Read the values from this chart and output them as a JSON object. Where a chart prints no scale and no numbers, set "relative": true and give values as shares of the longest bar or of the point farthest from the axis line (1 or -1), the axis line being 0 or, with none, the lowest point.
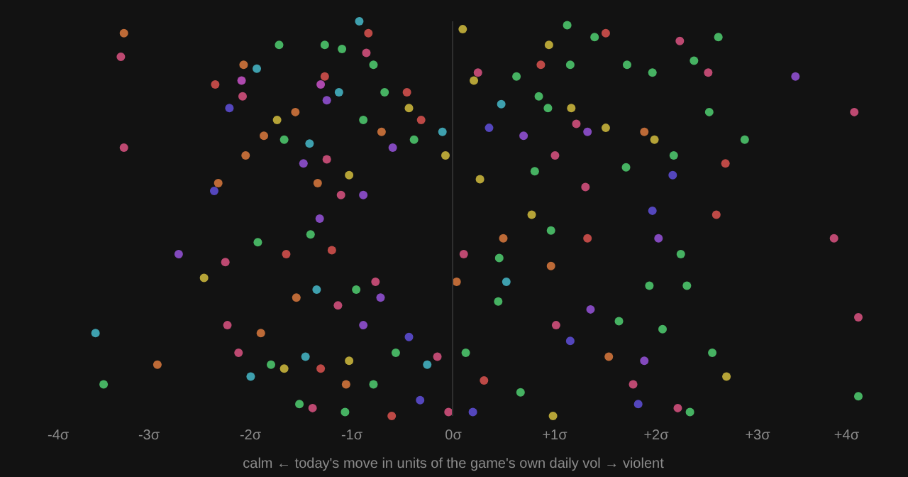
{
  "chart_data": {
    "type": "scatter",
    "xlabel": "calm ← today's move in units of the game's own daily vol → violent",
    "relative": true,
    "marker": "circle",
    "xlim": [
      -4,
      4
    ],
    "xticks": [
      {
        "value": -4,
        "label": "-4σ"
      },
      {
        "value": -3,
        "label": "-3σ"
      },
      {
        "value": -2,
        "label": "-2σ"
      },
      {
        "value": -1,
        "label": "-1σ"
      },
      {
        "value": 0,
        "label": "0σ"
      },
      {
        "value": 1,
        "label": "+1σ"
      },
      {
        "value": 2,
        "label": "+2σ"
      },
      {
        "value": 3,
        "label": "+3σ"
      },
      {
        "value": 4,
        "label": "+4σ"
      }
    ],
    "ref_lines": [
      {
        "axis": "x",
        "value": 0,
        "color": "#2e2e2e"
      }
    ],
    "x": [
      -3.24,
      -3.27,
      -3.24,
      -2.34,
      -2.08,
      -2.07,
      -2.2,
      -2.31,
      -2.35,
      -2.04,
      -1.86,
      -2.06,
      -1.93,
      -1.71,
      -1.26,
      -1.09,
      -1.24,
      -1.55,
      -1.73,
      -1.66,
      -1.41,
      -1.47,
      -1.24,
      -1.02,
      -1.33,
      -1.1,
      -0.88,
      -1.31,
      -0.92,
      -0.83,
      -1.26,
      -0.85,
      -0.78,
      -1.3,
      -1.12,
      -0.67,
      -0.45,
      -0.43,
      -0.88,
      -0.7,
      -0.59,
      -0.31,
      -0.1,
      -0.38,
      -0.07,
      0.1,
      1.13,
      1.4,
      1.51,
      0.95,
      0.87,
      1.16,
      1.72,
      1.97,
      2.24,
      2.62,
      2.38,
      2.52,
      3.38,
      3.96,
      2.53,
      0.63,
      0.85,
      0.94,
      1.33,
      1.17,
      1.22,
      0.48,
      0.25,
      0.21,
      0.36,
      0.7,
      1.51,
      1.89,
      1.99,
      2.18,
      2.88,
      1.01,
      1.71,
      2.17,
      2.69,
      0.81,
      0.27,
      1.31,
      1.97,
      2.6,
      0.78,
      -2.7,
      -2.24,
      -2.45,
      -3.52,
      -2.22,
      -1.89,
      -2.11,
      -2.91,
      -3.44,
      -1.99,
      -1.79,
      -1.66,
      -1.38,
      -1.51,
      -1.92,
      -1.64,
      -1.4,
      -1.19,
      -0.95,
      -0.76,
      -0.71,
      -1.34,
      -1.54,
      -1.13,
      -0.88,
      -0.43,
      -1.45,
      -1.02,
      -0.56,
      -0.25,
      -0.15,
      -1.3,
      -1.05,
      -0.78,
      -0.32,
      -0.6,
      -0.04,
      -1.06,
      0.97,
      2.03,
      3.76,
      0.5,
      1.33,
      2.25,
      1.94,
      2.31,
      0.53,
      0.97,
      1.36,
      1.64,
      1.02,
      2.07,
      4.0,
      1.16,
      2.56,
      1.54,
      1.89,
      2.7,
      0.31,
      1.78,
      4.0,
      1.83,
      2.22,
      2.34,
      0.99,
      0.2,
      0.67,
      0.13,
      0.45,
      0.11,
      0.04,
      0.46
    ],
    "values": [
      0.97,
      0.91,
      0.68,
      0.84,
      0.85,
      0.81,
      0.78,
      0.59,
      0.57,
      0.66,
      0.71,
      0.89,
      0.88,
      0.94,
      0.94,
      0.93,
      0.8,
      0.77,
      0.75,
      0.7,
      0.69,
      0.64,
      0.65,
      0.61,
      0.59,
      0.56,
      0.56,
      0.5,
      1.0,
      0.97,
      0.86,
      0.92,
      0.89,
      0.84,
      0.82,
      0.82,
      0.82,
      0.78,
      0.75,
      0.72,
      0.68,
      0.75,
      0.72,
      0.7,
      0.66,
      0.98,
      0.99,
      0.96,
      0.97,
      0.94,
      0.89,
      0.89,
      0.89,
      0.87,
      0.95,
      0.96,
      0.9,
      0.87,
      0.86,
      0.77,
      0.77,
      0.86,
      0.81,
      0.78,
      0.72,
      0.78,
      0.74,
      0.79,
      0.87,
      0.85,
      0.73,
      0.71,
      0.73,
      0.72,
      0.7,
      0.66,
      0.7,
      0.66,
      0.63,
      0.61,
      0.64,
      0.62,
      0.6,
      0.58,
      0.52,
      0.51,
      0.51,
      0.41,
      0.39,
      0.35,
      0.21,
      0.23,
      0.21,
      0.16,
      0.13,
      0.08,
      0.1,
      0.13,
      0.12,
      0.02,
      0.03,
      0.44,
      0.41,
      0.46,
      0.42,
      0.32,
      0.34,
      0.3,
      0.32,
      0.3,
      0.28,
      0.23,
      0.2,
      0.15,
      0.14,
      0.16,
      0.13,
      0.15,
      0.12,
      0.08,
      0.08,
      0.04,
      0.0,
      0.01,
      0.01,
      0.47,
      0.45,
      0.45,
      0.45,
      0.45,
      0.41,
      0.33,
      0.33,
      0.34,
      0.38,
      0.27,
      0.24,
      0.23,
      0.22,
      0.25,
      0.19,
      0.16,
      0.15,
      0.14,
      0.1,
      0.09,
      0.08,
      0.05,
      0.03,
      0.02,
      0.01,
      0.0,
      0.01,
      0.06,
      0.16,
      0.29,
      0.41,
      0.34,
      0.4
    ],
    "colors": [
      "#d0743c",
      "#d0507c",
      "#d0507c",
      "#d0504c",
      "#c050c0",
      "#d0507c",
      "#5c4cd0",
      "#d0743c",
      "#5c4cd0",
      "#d0743c",
      "#d0743c",
      "#d0743c",
      "#44b0c0",
      "#4cc46c",
      "#4cc46c",
      "#4cc46c",
      "#9050d0",
      "#d0743c",
      "#c8b43c",
      "#4cc46c",
      "#44b0c0",
      "#9050d0",
      "#d0507c",
      "#c8b43c",
      "#d0743c",
      "#d0507c",
      "#9050d0",
      "#9050d0",
      "#44b0c0",
      "#d0504c",
      "#d0504c",
      "#d0507c",
      "#4cc46c",
      "#c050c0",
      "#44b0c0",
      "#4cc46c",
      "#d0504c",
      "#c8b43c",
      "#4cc46c",
      "#d0743c",
      "#9050d0",
      "#d0504c",
      "#44b0c0",
      "#4cc46c",
      "#c8b43c",
      "#c8b43c",
      "#4cc46c",
      "#4cc46c",
      "#d0504c",
      "#c8b43c",
      "#d0504c",
      "#4cc46c",
      "#4cc46c",
      "#4cc46c",
      "#d0507c",
      "#4cc46c",
      "#4cc46c",
      "#d0507c",
      "#9050d0",
      "#d0507c",
      "#4cc46c",
      "#4cc46c",
      "#4cc46c",
      "#4cc46c",
      "#9050d0",
      "#c8b43c",
      "#d0507c",
      "#44b0c0",
      "#d0507c",
      "#c8b43c",
      "#5c4cd0",
      "#9050d0",
      "#c8b43c",
      "#d0743c",
      "#c8b43c",
      "#4cc46c",
      "#4cc46c",
      "#d0507c",
      "#4cc46c",
      "#5c4cd0",
      "#d0504c",
      "#4cc46c",
      "#c8b43c",
      "#d0507c",
      "#5c4cd0",
      "#d0504c",
      "#c8b43c",
      "#9050d0",
      "#d0507c",
      "#c8b43c",
      "#44b0c0",
      "#d0507c",
      "#d0743c",
      "#d0507c",
      "#d0743c",
      "#4cc46c",
      "#44b0c0",
      "#4cc46c",
      "#c8b43c",
      "#d0507c",
      "#4cc46c",
      "#4cc46c",
      "#d0504c",
      "#4cc46c",
      "#d0504c",
      "#4cc46c",
      "#d0507c",
      "#9050d0",
      "#44b0c0",
      "#d0743c",
      "#d0507c",
      "#9050d0",
      "#5c4cd0",
      "#44b0c0",
      "#c8b43c",
      "#4cc46c",
      "#44b0c0",
      "#d0507c",
      "#d0504c",
      "#d0743c",
      "#4cc46c",
      "#5c4cd0",
      "#d0504c",
      "#d0507c",
      "#4cc46c",
      "#4cc46c",
      "#9050d0",
      "#d0507c",
      "#d0743c",
      "#d0504c",
      "#4cc46c",
      "#4cc46c",
      "#4cc46c",
      "#44b0c0",
      "#d0743c",
      "#9050d0",
      "#4cc46c",
      "#d0507c",
      "#4cc46c",
      "#d0507c",
      "#5c4cd0",
      "#4cc46c",
      "#d0743c",
      "#9050d0",
      "#c8b43c",
      "#d0504c",
      "#d0507c",
      "#4cc46c",
      "#5c4cd0",
      "#d0507c",
      "#4cc46c",
      "#c8b43c",
      "#5c4cd0",
      "#4cc46c",
      "#4cc46c",
      "#4cc46c",
      "#d0507c",
      "#d0743c",
      "#4cc46c"
    ]
  }
}
